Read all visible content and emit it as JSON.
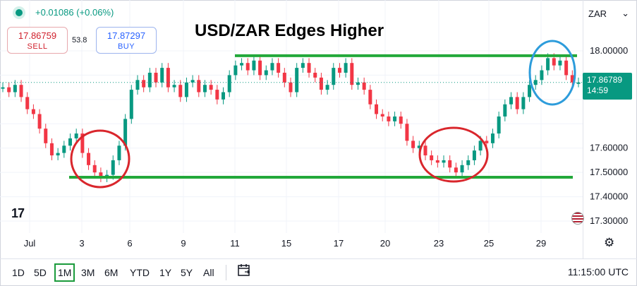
{
  "header": {
    "change": "+0.01086 (+0.06%)",
    "sell_price": "17.86759",
    "sell_label": "SELL",
    "spread": "53.8",
    "buy_price": "17.87297",
    "buy_label": "BUY",
    "symbol": "ZAR",
    "symbol_chevron": "⌄"
  },
  "current_price": {
    "value": "17.86789",
    "countdown": "14:59",
    "color": "#089981"
  },
  "timeframes": [
    "1D",
    "5D",
    "1M",
    "3M",
    "6M",
    "YTD",
    "1Y",
    "5Y",
    "All"
  ],
  "active_timeframe": "1M",
  "clock": "11:15:00 UTC",
  "logo": "17",
  "icons": {
    "calendar": "calendar-range-icon",
    "settings": "gear-icon"
  },
  "chart_data": {
    "type": "line",
    "title": "USD/ZAR Edges Higher",
    "x_tick_labels": [
      "Jul",
      "3",
      "6",
      "9",
      "11",
      "15",
      "17",
      "20",
      "23",
      "25",
      "29"
    ],
    "y_tick_labels": [
      "18.00000",
      "17.60000",
      "17.50000",
      "17.40000",
      "17.30000"
    ],
    "ylim": [
      17.26,
      18.1
    ],
    "series": [
      {
        "values": [
          17.85,
          17.83,
          17.86,
          17.81,
          17.76,
          17.74,
          17.68,
          17.62,
          17.57,
          17.58,
          17.61,
          17.64,
          17.66,
          17.58,
          17.53,
          17.5,
          17.48,
          17.49,
          17.55,
          17.61,
          17.72,
          17.84,
          17.88,
          17.85,
          17.91,
          17.87,
          17.93,
          17.85,
          17.86,
          17.81,
          17.87,
          17.88,
          17.83,
          17.86,
          17.84,
          17.8,
          17.83,
          17.9,
          17.94,
          17.95,
          17.92,
          17.96,
          17.9,
          17.92,
          17.95,
          17.91,
          17.87,
          17.83,
          17.93,
          17.95,
          17.91,
          17.89,
          17.84,
          17.86,
          17.93,
          17.91,
          17.95,
          17.86,
          17.87,
          17.84,
          17.78,
          17.74,
          17.73,
          17.71,
          17.73,
          17.7,
          17.63,
          17.6,
          17.61,
          17.57,
          17.55,
          17.54,
          17.55,
          17.52,
          17.5,
          17.53,
          17.55,
          17.59,
          17.63,
          17.62,
          17.66,
          17.73,
          17.78,
          17.81,
          17.76,
          17.81,
          17.86,
          17.88,
          17.92,
          17.97,
          17.94,
          17.96,
          17.9,
          17.87,
          17.87
        ]
      }
    ],
    "support_level": 17.48,
    "resistance_level": 17.98,
    "grid": true,
    "annotations": [
      "support line",
      "resistance line",
      "circle near 3–6",
      "circle near 23–25",
      "circle near 29"
    ]
  }
}
